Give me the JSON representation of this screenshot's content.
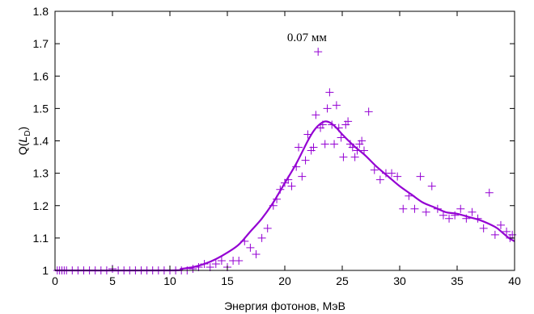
{
  "chart_data": {
    "type": "scatter",
    "xlabel": "Энергия фотонов, МэВ",
    "ylabel": "Q(L_D)",
    "ylabel_main": "Q(",
    "ylabel_italic": "L",
    "ylabel_sub": "D",
    "ylabel_close": ")",
    "annotation": {
      "text": "0.07 мм",
      "x": 20.2,
      "y": 1.72
    },
    "xlim": [
      0,
      40
    ],
    "ylim": [
      1,
      1.8
    ],
    "xticks": [
      0,
      5,
      10,
      15,
      20,
      25,
      30,
      35,
      40
    ],
    "xtick_labels": [
      "0",
      "5",
      "10",
      "15",
      "20",
      "25",
      "30",
      "35",
      "40"
    ],
    "yticks": [
      1,
      1.1,
      1.2,
      1.3,
      1.4,
      1.5,
      1.6,
      1.7,
      1.8
    ],
    "ytick_labels": [
      "1",
      "1.1",
      "1.2",
      "1.3",
      "1.4",
      "1.5",
      "1.6",
      "1.7",
      "1.8"
    ],
    "grid": false,
    "color": "#9400d3",
    "series": [
      {
        "kind": "points",
        "marker": "plus",
        "x": [
          0.2,
          0.4,
          0.6,
          0.8,
          1.0,
          1.5,
          2.0,
          2.5,
          3.0,
          3.5,
          4.0,
          4.5,
          5.0,
          5.5,
          6.0,
          6.5,
          7.0,
          7.5,
          8.0,
          8.5,
          9.0,
          9.5,
          10.0,
          10.5,
          11.0,
          11.5,
          12.0,
          12.5,
          13.0,
          13.5,
          14.0,
          14.5,
          15.0,
          15.5,
          16.0,
          16.5,
          17.0,
          17.5,
          18.0,
          18.5,
          19.0,
          19.3,
          19.6,
          20.0,
          20.3,
          20.6,
          21.0,
          21.2,
          21.5,
          21.8,
          22.0,
          22.3,
          22.5,
          22.7,
          22.9,
          23.1,
          23.3,
          23.5,
          23.7,
          23.9,
          24.1,
          24.3,
          24.5,
          24.7,
          24.9,
          25.1,
          25.3,
          25.5,
          25.7,
          25.9,
          26.1,
          26.3,
          26.5,
          26.7,
          26.9,
          27.3,
          27.8,
          28.3,
          28.8,
          29.3,
          29.8,
          30.3,
          30.8,
          31.3,
          31.8,
          32.3,
          32.8,
          33.3,
          33.8,
          34.3,
          34.8,
          35.3,
          35.8,
          36.3,
          36.8,
          37.3,
          37.8,
          38.3,
          38.8,
          39.3,
          39.6,
          39.8
        ],
        "y": [
          1.0,
          1.0,
          1.0,
          1.0,
          1.0,
          1.0,
          1.0,
          1.0,
          1.0,
          1.0,
          1.0,
          1.0,
          1.005,
          1.0,
          1.0,
          1.0,
          1.0,
          1.0,
          1.0,
          1.0,
          1.0,
          1.0,
          1.0,
          1.0,
          1.0,
          1.0,
          1.005,
          1.01,
          1.02,
          1.01,
          1.02,
          1.03,
          1.01,
          1.03,
          1.03,
          1.09,
          1.07,
          1.05,
          1.1,
          1.13,
          1.2,
          1.22,
          1.25,
          1.27,
          1.28,
          1.26,
          1.32,
          1.38,
          1.29,
          1.34,
          1.42,
          1.37,
          1.38,
          1.48,
          1.675,
          1.44,
          1.45,
          1.39,
          1.5,
          1.55,
          1.45,
          1.39,
          1.51,
          1.44,
          1.41,
          1.35,
          1.45,
          1.46,
          1.39,
          1.38,
          1.35,
          1.37,
          1.39,
          1.4,
          1.37,
          1.49,
          1.31,
          1.28,
          1.3,
          1.3,
          1.29,
          1.19,
          1.23,
          1.19,
          1.29,
          1.18,
          1.26,
          1.19,
          1.17,
          1.16,
          1.17,
          1.19,
          1.16,
          1.18,
          1.16,
          1.13,
          1.24,
          1.11,
          1.14,
          1.12,
          1.1,
          1.11
        ]
      },
      {
        "kind": "line",
        "x": [
          0,
          10,
          11,
          12,
          13,
          14,
          15,
          16,
          17,
          18,
          19,
          20,
          21,
          22,
          22.5,
          23,
          23.5,
          24,
          24.5,
          25,
          26,
          27,
          28,
          29,
          30,
          31,
          32,
          33,
          34,
          35,
          36,
          37,
          38,
          38.5,
          39,
          39.5,
          40
        ],
        "y": [
          1.0,
          1.0,
          1.005,
          1.01,
          1.02,
          1.035,
          1.055,
          1.08,
          1.12,
          1.16,
          1.21,
          1.27,
          1.33,
          1.4,
          1.43,
          1.45,
          1.46,
          1.455,
          1.44,
          1.42,
          1.385,
          1.355,
          1.32,
          1.29,
          1.26,
          1.235,
          1.21,
          1.195,
          1.18,
          1.175,
          1.165,
          1.155,
          1.14,
          1.13,
          1.115,
          1.1,
          1.09
        ]
      }
    ]
  }
}
